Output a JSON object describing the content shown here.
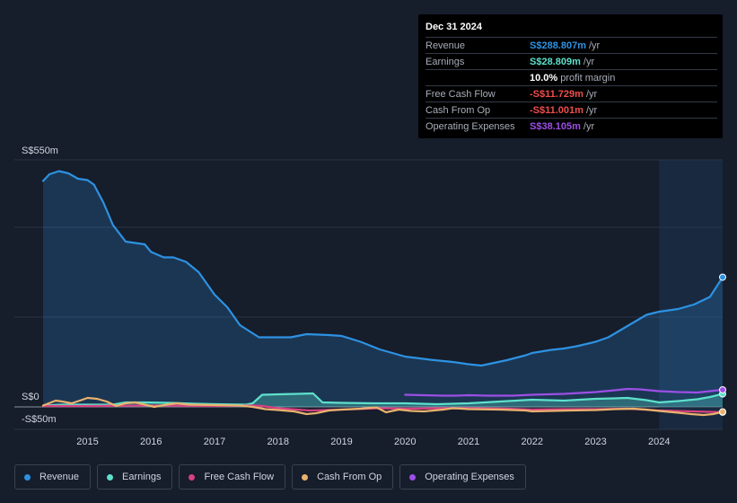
{
  "chart_data": {
    "type": "area",
    "y_axis": {
      "top_label": "S$550m",
      "zero_label": "S$0",
      "bottom_label": "-S$50m",
      "ylim": [
        -50,
        550
      ]
    },
    "x_axis": {
      "ticks": [
        "2015",
        "2016",
        "2017",
        "2018",
        "2019",
        "2020",
        "2021",
        "2022",
        "2023",
        "2024"
      ],
      "xlim": [
        2014.3,
        2025.0
      ]
    },
    "forecast_shade_start": 2024.0,
    "series": [
      {
        "name": "Revenue",
        "color": "#2d92e2",
        "fill": true,
        "x": [
          2014.3,
          2014.4,
          2014.55,
          2014.7,
          2014.85,
          2015.0,
          2015.1,
          2015.25,
          2015.4,
          2015.6,
          2015.75,
          2015.9,
          2016.0,
          2016.2,
          2016.35,
          2016.55,
          2016.75,
          2017.0,
          2017.2,
          2017.4,
          2017.7,
          2018.0,
          2018.2,
          2018.45,
          2018.8,
          2019.0,
          2019.3,
          2019.6,
          2020.0,
          2020.4,
          2020.75,
          2021.0,
          2021.2,
          2021.6,
          2021.9,
          2022.0,
          2022.3,
          2022.5,
          2022.7,
          2023.0,
          2023.2,
          2023.5,
          2023.8,
          2024.0,
          2024.3,
          2024.55,
          2024.8,
          2025.0
        ],
        "values": [
          503,
          518,
          525,
          520,
          508,
          505,
          495,
          455,
          405,
          368,
          365,
          362,
          345,
          333,
          333,
          323,
          300,
          250,
          222,
          182,
          155,
          155,
          155,
          162,
          160,
          158,
          145,
          128,
          112,
          105,
          100,
          95,
          92,
          104,
          115,
          120,
          127,
          130,
          135,
          145,
          155,
          180,
          205,
          212,
          218,
          228,
          245,
          288.8
        ]
      },
      {
        "name": "Earnings",
        "color": "#5ee0cb",
        "fill": true,
        "x": [
          2014.3,
          2014.6,
          2015.0,
          2015.4,
          2015.6,
          2015.9,
          2016.3,
          2016.7,
          2017.0,
          2017.5,
          2017.6,
          2017.75,
          2018.0,
          2018.3,
          2018.55,
          2018.7,
          2019.0,
          2019.5,
          2020.0,
          2020.5,
          2021.0,
          2021.5,
          2022.0,
          2022.5,
          2023.0,
          2023.3,
          2023.5,
          2023.8,
          2024.0,
          2024.3,
          2024.6,
          2024.8,
          2025.0
        ],
        "values": [
          3,
          5,
          5,
          5,
          10,
          10,
          9,
          7,
          6,
          5,
          8,
          27,
          28,
          29,
          30,
          10,
          9,
          8,
          8,
          6,
          8,
          12,
          16,
          14,
          18,
          19,
          20,
          15,
          10,
          13,
          17,
          22,
          28.8
        ]
      },
      {
        "name": "Free Cash Flow",
        "color": "#d94182",
        "fill": false,
        "x": [
          2014.3,
          2015.0,
          2016.0,
          2017.0,
          2017.6,
          2017.75,
          2018.0,
          2018.5,
          2019.0,
          2019.6,
          2020.0,
          2020.6,
          2021.0,
          2021.6,
          2022.0,
          2022.5,
          2023.0,
          2023.5,
          2024.0,
          2024.5,
          2025.0
        ],
        "values": [
          2,
          2,
          3,
          2,
          3,
          2,
          -3,
          -8,
          -6,
          -3,
          -4,
          -3,
          -3,
          -4,
          -6,
          -5,
          -5,
          -4,
          -8,
          -10,
          -11.729
        ]
      },
      {
        "name": "Cash From Op",
        "color": "#e9b26d",
        "fill": false,
        "x": [
          2014.3,
          2014.5,
          2014.6,
          2014.75,
          2014.9,
          2015.0,
          2015.15,
          2015.3,
          2015.45,
          2015.6,
          2015.75,
          2015.9,
          2016.05,
          2016.2,
          2016.4,
          2016.6,
          2017.0,
          2017.4,
          2017.6,
          2017.8,
          2018.0,
          2018.25,
          2018.45,
          2018.6,
          2018.8,
          2019.0,
          2019.3,
          2019.55,
          2019.7,
          2019.9,
          2020.1,
          2020.3,
          2020.6,
          2020.75,
          2020.9,
          2021.0,
          2021.5,
          2021.9,
          2022.0,
          2022.3,
          2022.6,
          2023.0,
          2023.3,
          2023.6,
          2023.8,
          2024.0,
          2024.3,
          2024.5,
          2024.7,
          2024.85,
          2025.0
        ],
        "values": [
          3,
          14,
          12,
          8,
          15,
          20,
          18,
          12,
          2,
          8,
          10,
          5,
          0,
          4,
          8,
          5,
          4,
          3,
          0,
          -5,
          -7,
          -10,
          -16,
          -14,
          -8,
          -6,
          -4,
          -1,
          -12,
          -6,
          -9,
          -10,
          -6,
          -3,
          -4,
          -5,
          -6,
          -8,
          -10,
          -9,
          -8,
          -7,
          -5,
          -4,
          -6,
          -9,
          -13,
          -16,
          -18,
          -16,
          -11.001
        ]
      },
      {
        "name": "Operating Expenses",
        "color": "#9c4fe6",
        "fill": false,
        "x": [
          2020.0,
          2020.3,
          2020.6,
          2020.8,
          2021.0,
          2021.3,
          2021.7,
          2022.0,
          2022.5,
          2023.0,
          2023.3,
          2023.5,
          2023.7,
          2024.0,
          2024.3,
          2024.6,
          2024.8,
          2025.0
        ],
        "values": [
          27,
          26,
          25,
          25,
          26,
          25,
          25,
          27,
          29,
          33,
          37,
          40,
          39,
          35,
          33,
          32,
          35,
          38.105
        ]
      }
    ]
  },
  "tooltip": {
    "date": "Dec 31 2024",
    "revenue": {
      "label": "Revenue",
      "value": "S$288.807m",
      "unit": "/yr"
    },
    "earnings": {
      "label": "Earnings",
      "value": "S$28.809m",
      "unit": "/yr"
    },
    "margin": {
      "value": "10.0%",
      "text": "profit margin"
    },
    "fcf": {
      "label": "Free Cash Flow",
      "value": "-S$11.729m",
      "unit": "/yr"
    },
    "cfo": {
      "label": "Cash From Op",
      "value": "-S$11.001m",
      "unit": "/yr"
    },
    "opex": {
      "label": "Operating Expenses",
      "value": "S$38.105m",
      "unit": "/yr"
    }
  },
  "colors": {
    "revenue": "#2d92e2",
    "earnings": "#5ee0cb",
    "fcf": "#d94182",
    "cfo": "#e9b26d",
    "opex": "#9c4fe6",
    "negative": "#ee4d4d",
    "background": "#161d2b"
  },
  "legend": {
    "items": [
      {
        "label": "Revenue",
        "color": "#2d92e2"
      },
      {
        "label": "Earnings",
        "color": "#5ee0cb"
      },
      {
        "label": "Free Cash Flow",
        "color": "#d94182"
      },
      {
        "label": "Cash From Op",
        "color": "#e9b26d"
      },
      {
        "label": "Operating Expenses",
        "color": "#9c4fe6"
      }
    ]
  }
}
